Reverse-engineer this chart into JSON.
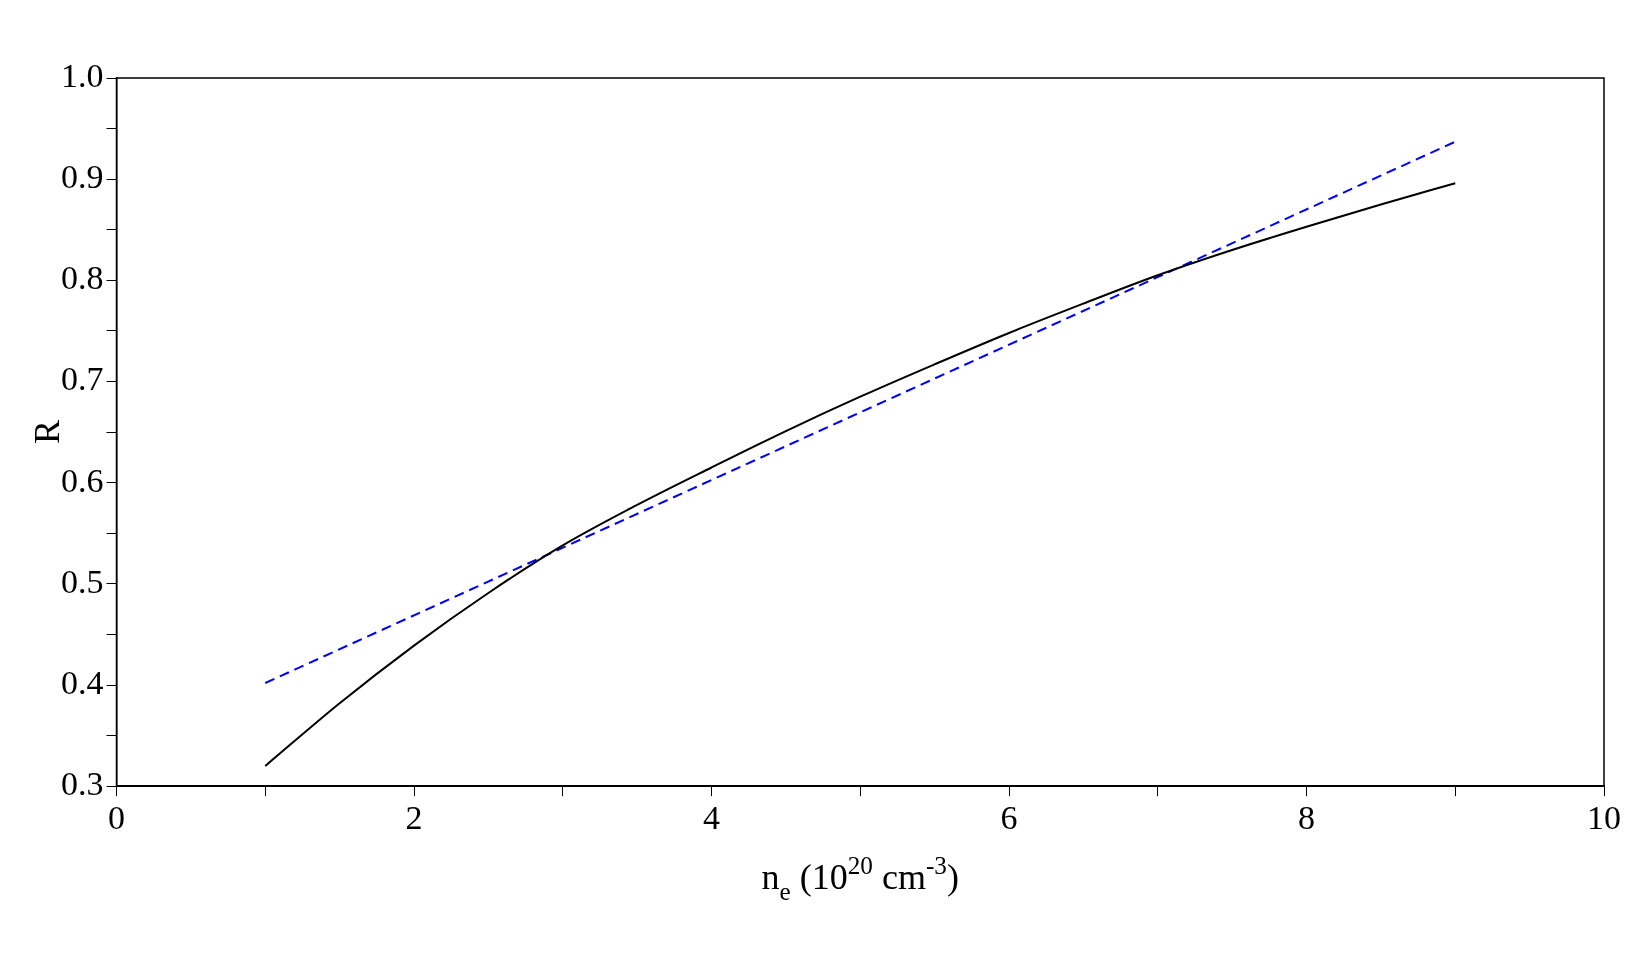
{
  "chart_data": {
    "type": "line",
    "xlabel": "n$_{e}$ (10$^{20}$ cm$^{-3}$)",
    "ylabel": "R",
    "xlim": [
      0,
      10
    ],
    "ylim": [
      0.3,
      1.0
    ],
    "xticks": [
      0,
      {
        "value": 1,
        "label": null
      },
      2,
      {
        "value": 3,
        "label": null
      },
      4,
      {
        "value": 5,
        "label": null
      },
      6,
      {
        "value": 7,
        "label": null
      },
      8,
      {
        "value": 9,
        "label": null
      },
      10
    ],
    "yticks": [
      0.3,
      {
        "value": 0.35,
        "label": null
      },
      0.4,
      {
        "value": 0.45,
        "label": null
      },
      0.5,
      {
        "value": 0.55,
        "label": null
      },
      0.6,
      {
        "value": 0.65,
        "label": null
      },
      0.7,
      {
        "value": 0.75,
        "label": null
      },
      0.8,
      {
        "value": 0.85,
        "label": null
      },
      0.9,
      {
        "value": 0.95,
        "label": null
      },
      "1.0"
    ],
    "grid": false,
    "legend": false,
    "marker": "none",
    "series": [
      {
        "color": "#000000",
        "line_style": "solid",
        "x": [
          1,
          1.5,
          2,
          2.5,
          3,
          3.5,
          4,
          4.5,
          5,
          5.5,
          6,
          6.5,
          7,
          7.5,
          8,
          8.5,
          9
        ],
        "values": [
          0.32,
          0.382,
          0.439,
          0.491,
          0.538,
          0.578,
          0.615,
          0.651,
          0.685,
          0.717,
          0.748,
          0.777,
          0.805,
          0.83,
          0.853,
          0.875,
          0.896
        ]
      },
      {
        "color": "#0000ff",
        "line_style": "dashed",
        "x": [
          1,
          9
        ],
        "values": [
          0.402,
          0.937
        ]
      }
    ]
  }
}
